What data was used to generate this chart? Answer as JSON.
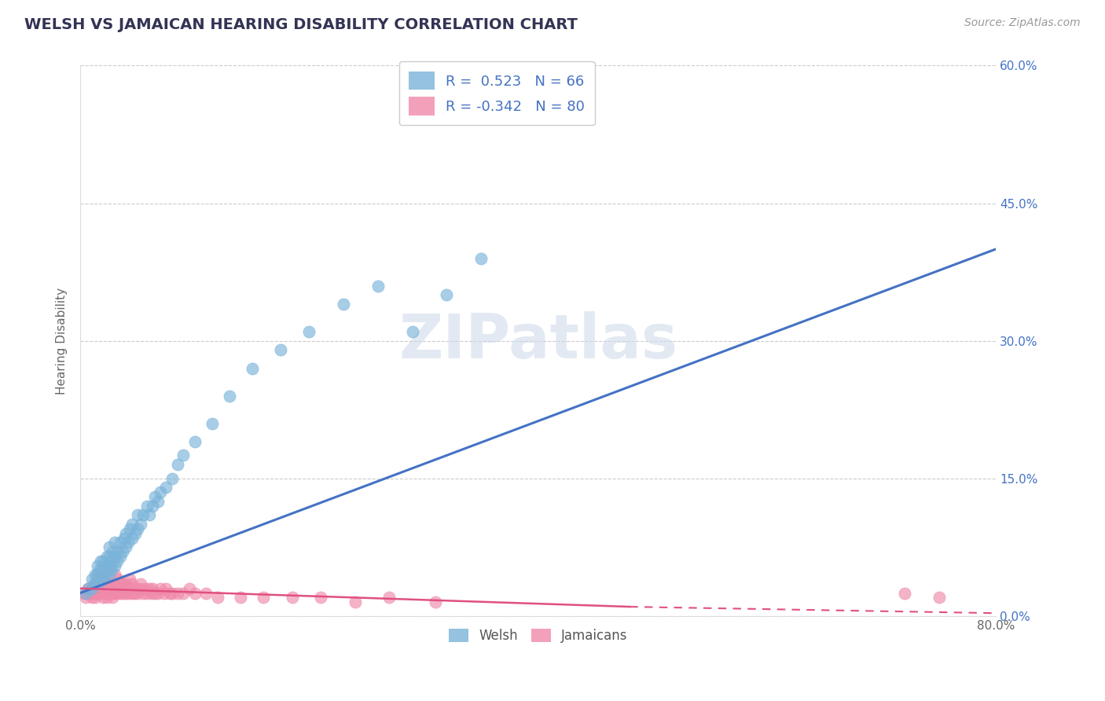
{
  "title": "WELSH VS JAMAICAN HEARING DISABILITY CORRELATION CHART",
  "source": "Source: ZipAtlas.com",
  "ylabel": "Hearing Disability",
  "xlim": [
    0.0,
    0.8
  ],
  "ylim": [
    0.0,
    0.6
  ],
  "ytick_vals": [
    0.0,
    0.15,
    0.3,
    0.45,
    0.6
  ],
  "ytick_labels": [
    "0.0%",
    "15.0%",
    "30.0%",
    "45.0%",
    "60.0%"
  ],
  "xtick_show": [
    "0.0%",
    "80.0%"
  ],
  "xtick_pos": [
    0.0,
    0.8
  ],
  "welsh_scatter_color": "#7ab3d9",
  "jamaican_scatter_color": "#f08aaa",
  "line_welsh_color": "#4472c4",
  "line_jamaican_color_solid": "#e05080",
  "line_jamaican_color_dash": "#e05080",
  "axis_color": "#4472c4",
  "title_color": "#333355",
  "watermark": "ZIPatlas",
  "R_welsh": 0.523,
  "N_welsh": 66,
  "R_jamaican": -0.342,
  "N_jamaican": 80,
  "welsh_line_x0": 0.0,
  "welsh_line_y0": 0.025,
  "welsh_line_x1": 0.8,
  "welsh_line_y1": 0.4,
  "jamaican_line_solid_x0": 0.0,
  "jamaican_line_solid_y0": 0.03,
  "jamaican_line_solid_x1": 0.48,
  "jamaican_line_solid_y1": 0.01,
  "jamaican_line_dash_x0": 0.48,
  "jamaican_line_dash_y0": 0.01,
  "jamaican_line_dash_x1": 0.8,
  "jamaican_line_dash_y1": 0.003,
  "welsh_x": [
    0.005,
    0.007,
    0.01,
    0.01,
    0.012,
    0.013,
    0.015,
    0.015,
    0.015,
    0.017,
    0.017,
    0.018,
    0.02,
    0.02,
    0.02,
    0.022,
    0.022,
    0.023,
    0.025,
    0.025,
    0.025,
    0.025,
    0.027,
    0.027,
    0.028,
    0.03,
    0.03,
    0.03,
    0.032,
    0.033,
    0.035,
    0.035,
    0.037,
    0.038,
    0.04,
    0.04,
    0.042,
    0.043,
    0.045,
    0.045,
    0.048,
    0.05,
    0.05,
    0.053,
    0.055,
    0.058,
    0.06,
    0.063,
    0.065,
    0.068,
    0.07,
    0.075,
    0.08,
    0.085,
    0.09,
    0.1,
    0.115,
    0.13,
    0.15,
    0.175,
    0.2,
    0.23,
    0.26,
    0.29,
    0.32,
    0.35
  ],
  "welsh_y": [
    0.025,
    0.03,
    0.03,
    0.04,
    0.035,
    0.045,
    0.035,
    0.045,
    0.055,
    0.04,
    0.05,
    0.06,
    0.04,
    0.05,
    0.06,
    0.045,
    0.055,
    0.065,
    0.045,
    0.055,
    0.065,
    0.075,
    0.05,
    0.06,
    0.07,
    0.055,
    0.065,
    0.08,
    0.06,
    0.07,
    0.065,
    0.08,
    0.07,
    0.085,
    0.075,
    0.09,
    0.08,
    0.095,
    0.085,
    0.1,
    0.09,
    0.095,
    0.11,
    0.1,
    0.11,
    0.12,
    0.11,
    0.12,
    0.13,
    0.125,
    0.135,
    0.14,
    0.15,
    0.165,
    0.175,
    0.19,
    0.21,
    0.24,
    0.27,
    0.29,
    0.31,
    0.34,
    0.36,
    0.31,
    0.35,
    0.39
  ],
  "jamaican_x": [
    0.003,
    0.005,
    0.007,
    0.008,
    0.01,
    0.01,
    0.012,
    0.012,
    0.013,
    0.015,
    0.015,
    0.015,
    0.017,
    0.018,
    0.018,
    0.02,
    0.02,
    0.02,
    0.022,
    0.022,
    0.023,
    0.023,
    0.025,
    0.025,
    0.025,
    0.027,
    0.027,
    0.028,
    0.028,
    0.03,
    0.03,
    0.03,
    0.032,
    0.033,
    0.033,
    0.035,
    0.035,
    0.037,
    0.037,
    0.038,
    0.04,
    0.04,
    0.042,
    0.043,
    0.043,
    0.045,
    0.045,
    0.047,
    0.048,
    0.05,
    0.052,
    0.053,
    0.055,
    0.057,
    0.058,
    0.06,
    0.062,
    0.063,
    0.065,
    0.068,
    0.07,
    0.073,
    0.075,
    0.078,
    0.08,
    0.085,
    0.09,
    0.095,
    0.1,
    0.11,
    0.12,
    0.14,
    0.16,
    0.185,
    0.21,
    0.24,
    0.27,
    0.31,
    0.72,
    0.75
  ],
  "jamaican_y": [
    0.025,
    0.02,
    0.03,
    0.025,
    0.02,
    0.03,
    0.025,
    0.035,
    0.02,
    0.025,
    0.035,
    0.045,
    0.025,
    0.03,
    0.04,
    0.02,
    0.03,
    0.04,
    0.025,
    0.035,
    0.02,
    0.03,
    0.025,
    0.035,
    0.05,
    0.025,
    0.035,
    0.02,
    0.03,
    0.025,
    0.035,
    0.045,
    0.025,
    0.03,
    0.04,
    0.025,
    0.035,
    0.025,
    0.035,
    0.03,
    0.025,
    0.035,
    0.025,
    0.03,
    0.04,
    0.025,
    0.035,
    0.025,
    0.03,
    0.025,
    0.03,
    0.035,
    0.025,
    0.03,
    0.025,
    0.03,
    0.025,
    0.03,
    0.025,
    0.025,
    0.03,
    0.025,
    0.03,
    0.025,
    0.025,
    0.025,
    0.025,
    0.03,
    0.025,
    0.025,
    0.02,
    0.02,
    0.02,
    0.02,
    0.02,
    0.015,
    0.02,
    0.015,
    0.025,
    0.02
  ]
}
